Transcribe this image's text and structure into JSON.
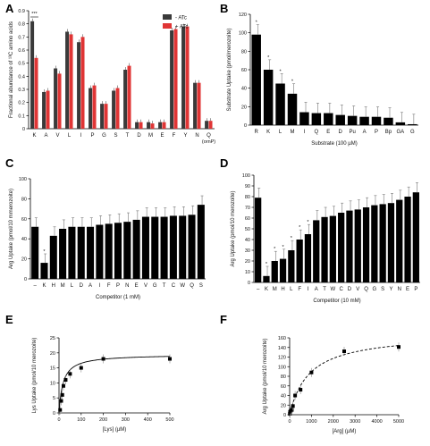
{
  "colors": {
    "dark": "#3a3a3a",
    "red": "#e03535",
    "black": "#000000"
  },
  "chart_data": [
    {
      "panel": "A",
      "type": "bar",
      "categories": [
        "K",
        "A",
        "V",
        "L",
        "I",
        "P",
        "G",
        "S",
        "T",
        "D",
        "M",
        "E",
        "F",
        "Y",
        "N",
        "Q"
      ],
      "category_note": "(ornP)",
      "series": [
        {
          "name": "- ATc",
          "values": [
            0.82,
            0.28,
            0.46,
            0.74,
            0.66,
            0.31,
            0.19,
            0.29,
            0.45,
            0.05,
            0.05,
            0.05,
            0.75,
            0.78,
            0.35,
            0.06
          ]
        },
        {
          "name": "+ ATc",
          "values": [
            0.54,
            0.29,
            0.42,
            0.72,
            0.7,
            0.33,
            0.19,
            0.31,
            0.48,
            0.05,
            0.04,
            0.05,
            0.76,
            0.78,
            0.35,
            0.06
          ]
        }
      ],
      "ylabel": "Fractional abundance of ¹³C amino acids",
      "ylim": [
        0,
        0.9
      ],
      "yticks": [
        0,
        0.1,
        0.2,
        0.3,
        0.4,
        0.5,
        0.6,
        0.7,
        0.8,
        0.9
      ],
      "ytick_labels": [
        "0",
        "0.1",
        "0.2",
        "0.3",
        "0.4",
        "0.5",
        "0.6",
        "0.7",
        "0.8",
        "0.9"
      ],
      "legend": "top-right",
      "annotation": "***"
    },
    {
      "panel": "B",
      "type": "bar",
      "categories": [
        "R",
        "K",
        "L",
        "M",
        "I",
        "Q",
        "E",
        "D",
        "Pu",
        "A",
        "P",
        "Bp",
        "GA",
        "G"
      ],
      "values": [
        98,
        60,
        45,
        34,
        14,
        13,
        13,
        11,
        10,
        9,
        9,
        8,
        3,
        1
      ],
      "stars": [
        "*",
        "*",
        "*",
        "*",
        "",
        "",
        "",
        "",
        "",
        "",
        "",
        "",
        "",
        ""
      ],
      "xlabel": "Substrate (100 µM)",
      "ylabel": "Substrate Uptake (pmol/merozoite)",
      "ylim": [
        0,
        120
      ],
      "yticks": [
        0,
        20,
        40,
        60,
        80,
        100,
        120
      ],
      "ytick_labels": [
        "0",
        "20",
        "40",
        "60",
        "80",
        "100",
        "120"
      ]
    },
    {
      "panel": "C",
      "type": "bar",
      "categories": [
        "–",
        "K",
        "H",
        "M",
        "L",
        "D",
        "A",
        "I",
        "F",
        "P",
        "N",
        "E",
        "V",
        "G",
        "T",
        "C",
        "W",
        "Q",
        "S"
      ],
      "values": [
        52,
        16,
        43,
        50,
        52,
        52,
        52,
        54,
        55,
        56,
        57,
        59,
        62,
        62,
        62,
        63,
        63,
        64,
        74
      ],
      "stars": [
        "",
        "*",
        "",
        "",
        "",
        "",
        "",
        "",
        "",
        "",
        "",
        "",
        "",
        "",
        "",
        "",
        "",
        "",
        ""
      ],
      "xlabel": "Competitor (1 mM)",
      "ylabel": "Arg Uptake (pmol/10 mmerozoite)",
      "ylim": [
        0,
        100
      ],
      "yticks": [
        0,
        20,
        40,
        60,
        80,
        100
      ],
      "ytick_labels": [
        "0",
        "20",
        "40",
        "60",
        "80",
        "100"
      ]
    },
    {
      "panel": "D",
      "type": "bar",
      "categories": [
        "–",
        "K",
        "M",
        "H",
        "L",
        "F",
        "I",
        "A",
        "T",
        "W",
        "C",
        "D",
        "V",
        "Q",
        "G",
        "S",
        "Y",
        "N",
        "E",
        "P"
      ],
      "values": [
        79,
        6,
        20,
        22,
        30,
        40,
        45,
        58,
        61,
        62,
        65,
        67,
        68,
        70,
        72,
        73,
        74,
        77,
        80,
        84
      ],
      "stars": [
        "",
        "*",
        "*",
        "*",
        "*",
        "*",
        "*",
        "",
        "",
        "",
        "",
        "",
        "",
        "",
        "",
        "",
        "",
        "",
        "",
        ""
      ],
      "xlabel": "Competitor (10 mM)",
      "ylabel": "Arg Uptake (pmol/10 merozoite)",
      "ylim": [
        0,
        100
      ],
      "yticks": [
        0,
        10,
        20,
        30,
        40,
        50,
        60,
        70,
        80,
        90,
        100
      ],
      "ytick_labels": [
        "0",
        "10",
        "20",
        "30",
        "40",
        "50",
        "60",
        "70",
        "80",
        "90",
        "100"
      ]
    },
    {
      "panel": "E",
      "type": "scatter",
      "x": [
        5,
        10,
        15,
        20,
        30,
        50,
        100,
        200,
        500
      ],
      "y": [
        1,
        4,
        6,
        9,
        11,
        13,
        15,
        18,
        18
      ],
      "xlabel": "[Lys] (µM)",
      "ylabel": "Lys Uptake (pmol/10 merozoite)",
      "xlim": [
        0,
        500
      ],
      "ylim": [
        0,
        25
      ],
      "xticks": [
        0,
        100,
        200,
        300,
        400,
        500
      ],
      "xtick_labels": [
        "0",
        "100",
        "200",
        "300",
        "400",
        "500"
      ],
      "yticks": [
        0,
        5,
        10,
        15,
        20,
        25
      ],
      "ytick_labels": [
        "0",
        "5",
        "10",
        "15",
        "20",
        "25"
      ],
      "fit": {
        "model": "michaelis-menten",
        "vmax": 19.5,
        "km": 18
      }
    },
    {
      "panel": "F",
      "type": "scatter",
      "x": [
        10,
        20,
        50,
        100,
        150,
        250,
        500,
        1000,
        2500,
        5000
      ],
      "y": [
        2,
        6,
        8,
        10,
        18,
        40,
        52,
        88,
        132,
        141
      ],
      "xlabel": "[Arg] (µM)",
      "ylabel": "Arg Uptake (pmol/10 merozoite)",
      "xlim": [
        0,
        5000
      ],
      "ylim": [
        0,
        160
      ],
      "xticks": [
        0,
        1000,
        2000,
        3000,
        4000,
        5000
      ],
      "xtick_labels": [
        "0",
        "1000",
        "2000",
        "3000",
        "4000",
        "5000"
      ],
      "yticks": [
        0,
        20,
        40,
        60,
        80,
        100,
        120,
        140,
        160
      ],
      "ytick_labels": [
        "0",
        "20",
        "40",
        "60",
        "80",
        "100",
        "120",
        "140",
        "160"
      ],
      "fit": {
        "model": "michaelis-menten",
        "vmax": 170,
        "km": 900
      }
    }
  ]
}
